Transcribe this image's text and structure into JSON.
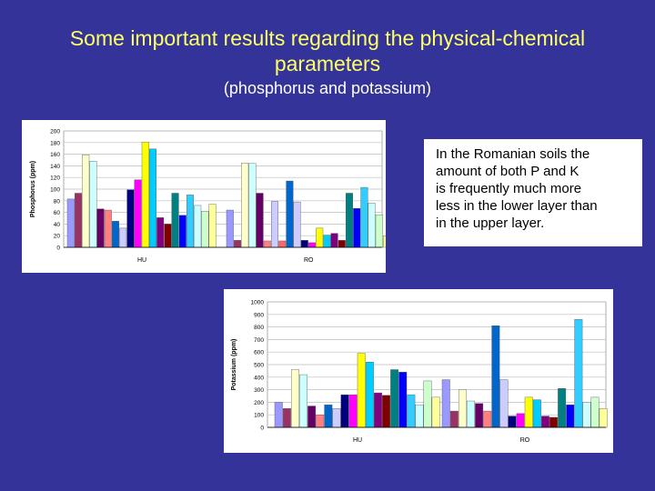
{
  "slide": {
    "title_line1": "Some important results regarding the physical-chemical",
    "title_line2": "parameters",
    "subtitle": "(phosphorus and potassium)",
    "note_lines": [
      "In the Romanian soils the",
      "amount of both P and K",
      "is frequently much more",
      "less in the lower layer than",
      "in the upper layer."
    ]
  },
  "chart_data": [
    {
      "type": "bar",
      "ylabel": "Phosphorus (ppm)",
      "xlabel": "",
      "ylim": [
        0,
        200
      ],
      "yticks": [
        "0",
        "20",
        "40",
        "60",
        "80",
        "100",
        "120",
        "140",
        "160",
        "180",
        "200"
      ],
      "group_labels": [
        "HU",
        "RO"
      ],
      "grid": true,
      "legend": "none",
      "groups": [
        {
          "label": "HU",
          "values": [
            83,
            93,
            159,
            148,
            66,
            64,
            45,
            33,
            99,
            116,
            181,
            169,
            51,
            40,
            93,
            55,
            90,
            72,
            62,
            74
          ],
          "colors": [
            "#9999ff",
            "#993366",
            "#ffffcc",
            "#ccffff",
            "#660066",
            "#ff8080",
            "#0066cc",
            "#ccccff",
            "#000080",
            "#ff00ff",
            "#ffff00",
            "#00ccff",
            "#800080",
            "#800000",
            "#008080",
            "#0000ff",
            "#33ccff",
            "#ccffff",
            "#ccffcc",
            "#ffff99"
          ]
        },
        {
          "label": "RO",
          "values": [
            64,
            12,
            145,
            144,
            93,
            11,
            79,
            11,
            114,
            78,
            12,
            8,
            33,
            21,
            24,
            12,
            93,
            67,
            103,
            76,
            56,
            20
          ],
          "colors": [
            "#9999ff",
            "#993366",
            "#ffffcc",
            "#ccffff",
            "#660066",
            "#ff8080",
            "#ccccff",
            "#ff6666",
            "#0066cc",
            "#ccccff",
            "#000080",
            "#ff00ff",
            "#ffff00",
            "#00ccff",
            "#800080",
            "#800000",
            "#008080",
            "#0000ff",
            "#33ccff",
            "#ccffff",
            "#ccffcc",
            "#ffff99"
          ]
        }
      ]
    },
    {
      "type": "bar",
      "ylabel": "Potassium (ppm)",
      "xlabel": "",
      "ylim": [
        0,
        1000
      ],
      "yticks": [
        "0",
        "100",
        "200",
        "300",
        "400",
        "500",
        "600",
        "700",
        "800",
        "900",
        "1000"
      ],
      "group_labels": [
        "HU",
        "RO"
      ],
      "grid": true,
      "legend": "none",
      "groups": [
        {
          "label": "HU",
          "values": [
            200,
            150,
            460,
            420,
            170,
            100,
            180,
            150,
            260,
            260,
            590,
            520,
            275,
            255,
            460,
            440,
            260,
            180,
            370,
            240
          ],
          "colors": [
            "#9999ff",
            "#993366",
            "#ffffcc",
            "#ccffff",
            "#660066",
            "#ff8080",
            "#0066cc",
            "#ccccff",
            "#000080",
            "#ff00ff",
            "#ffff00",
            "#00ccff",
            "#800080",
            "#800000",
            "#008080",
            "#0000ff",
            "#33ccff",
            "#ccffff",
            "#ccffcc",
            "#ffff99"
          ]
        },
        {
          "label": "RO",
          "values": [
            380,
            130,
            300,
            210,
            190,
            130,
            810,
            380,
            90,
            110,
            240,
            220,
            90,
            80,
            310,
            180,
            860,
            200,
            240,
            150
          ],
          "colors": [
            "#9999ff",
            "#993366",
            "#ffffcc",
            "#ccffff",
            "#660066",
            "#ff8080",
            "#0066cc",
            "#ccccff",
            "#000080",
            "#ff00ff",
            "#ffff00",
            "#00ccff",
            "#800080",
            "#800000",
            "#008080",
            "#0000ff",
            "#33ccff",
            "#ccffff",
            "#ccffcc",
            "#ffff99"
          ]
        }
      ]
    }
  ]
}
